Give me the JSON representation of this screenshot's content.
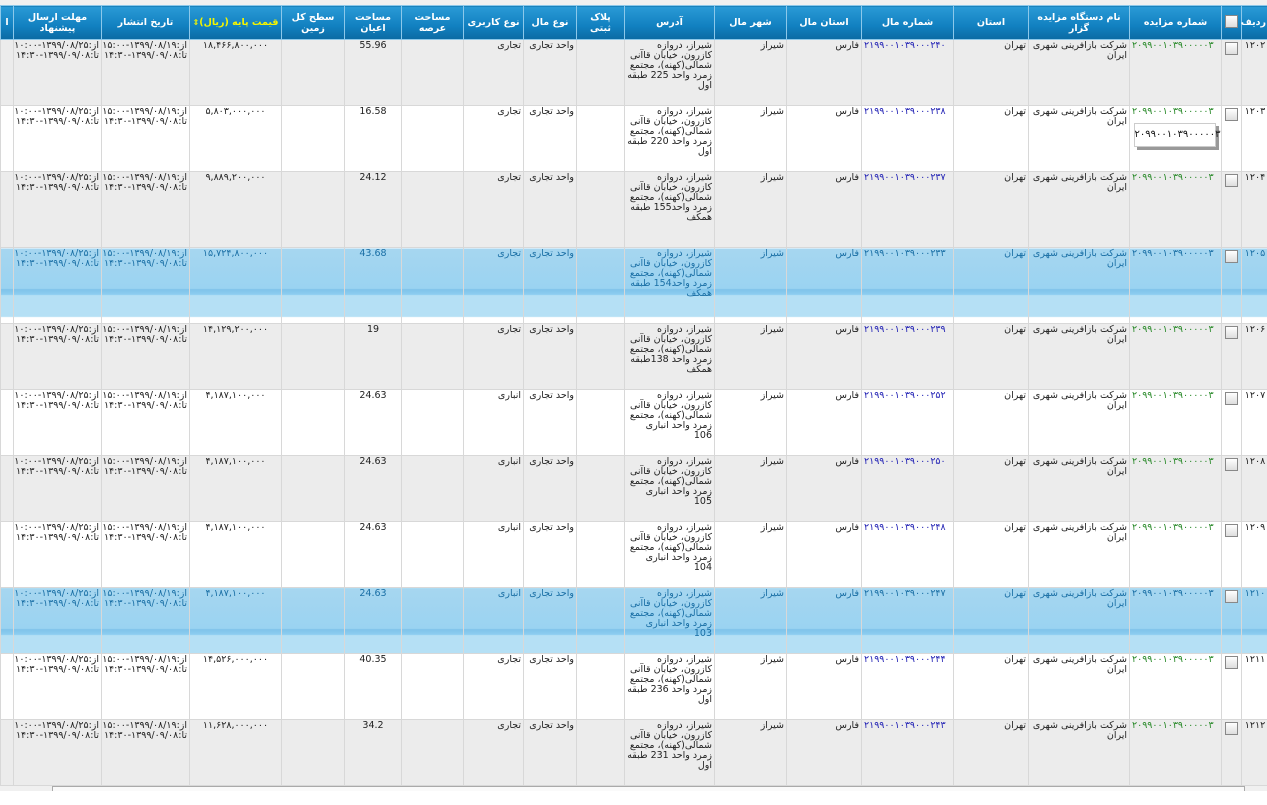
{
  "headers": {
    "row": "ردیف",
    "auction_number": "شماره مزایده",
    "organizer": "نام دستگاه مزایده گزار",
    "province": "استان",
    "property_number": "شماره مال",
    "property_province": "استان مال",
    "property_city": "شهر مال",
    "address": "آدرس",
    "registry_plate": "پلاک ثبتی",
    "property_type": "نوع مال",
    "usage_type": "نوع کاربری",
    "plot_area": "مساحت عرصه",
    "building_area": "مساحت اعیان",
    "total_land_area": "سطح کل زمین",
    "base_price": "قیمت پایه (ریال)",
    "publish_date": "تاریخ انتشار",
    "deadline": "مهلت ارسال پیشنهاد",
    "extra": "ا"
  },
  "tooltip": "۲۰۹۹۰۰۱۰۳۹۰۰۰۰۰۳",
  "colors": {
    "header": "#1180c0",
    "selected_row": "#9ad3f1",
    "auction_number": "#2a8a2a",
    "property_number": "#2323b5",
    "price_header": "#f4f400"
  },
  "rows": [
    {
      "row": "۱۲۰۲",
      "auction": "۲۰۹۹۰۰۱۰۳۹۰۰۰۰۰۳",
      "organizer": "شرکت بازآفرینی شهری ایران",
      "province": "تهران",
      "pnum": "۲۱۹۹۰۰۱۰۳۹۰۰۰۲۴۰",
      "pprov": "فارس",
      "city": "شیراز",
      "address": "شیراز، دروازه کازرون، خیابان قاآنی شمالی(کهنه)، مجتمع زمرد واحد 225 طبقه اول",
      "plate": "",
      "ptype": "واحد تجاری",
      "usage": "تجاری",
      "plot": "",
      "building": "55.96",
      "land": "",
      "price": "۱۸,۴۶۶,۸۰۰,۰۰۰",
      "pub_from": "از:۱۳۹۹/۰۸/۱۹-۱۵:۰۰",
      "pub_to": "تا:۱۳۹۹/۰۹/۰۸-۱۴:۳۰",
      "dl_from": "از:۱۳۹۹/۰۸/۲۵-۱۰:۰۰",
      "dl_to": "تا:۱۳۹۹/۰۹/۰۸-۱۴:۳۰",
      "selected": false
    },
    {
      "row": "۱۲۰۳",
      "auction": "۲۰۹۹۰۰۱۰۳۹۰۰۰۰۰۳",
      "organizer": "شرکت بازآفرینی شهری ایران",
      "province": "تهران",
      "pnum": "۲۱۹۹۰۰۱۰۳۹۰۰۰۲۳۸",
      "pprov": "فارس",
      "city": "شیراز",
      "address": "شیراز، دروازه کازرون، خیابان قاآنی شمالی(کهنه)، مجتمع زمرد واحد 220 طبقه اول",
      "plate": "",
      "ptype": "واحد تجاری",
      "usage": "تجاری",
      "plot": "",
      "building": "16.58",
      "land": "",
      "price": "۵,۸۰۳,۰۰۰,۰۰۰",
      "pub_from": "از:۱۳۹۹/۰۸/۱۹-۱۵:۰۰",
      "pub_to": "تا:۱۳۹۹/۰۹/۰۸-۱۴:۳۰",
      "dl_from": "از:۱۳۹۹/۰۸/۲۵-۱۰:۰۰",
      "dl_to": "تا:۱۳۹۹/۰۹/۰۸-۱۴:۳۰",
      "selected": false
    },
    {
      "row": "۱۲۰۴",
      "auction": "۲۰۹۹۰۰۱۰۳۹۰۰۰۰۰۳",
      "organizer": "شرکت بازآفرینی شهری ایران",
      "province": "تهران",
      "pnum": "۲۱۹۹۰۰۱۰۳۹۰۰۰۲۳۷",
      "pprov": "فارس",
      "city": "شیراز",
      "address": "شیراز، دروازه کازرون، خیابان قاآنی شمالی(کهنه)، مجتمع زمرد واحد155 طبقه همکف",
      "plate": "",
      "ptype": "واحد تجاری",
      "usage": "تجاری",
      "plot": "",
      "building": "24.12",
      "land": "",
      "price": "۹,۸۸۹,۲۰۰,۰۰۰",
      "pub_from": "از:۱۳۹۹/۰۸/۱۹-۱۵:۰۰",
      "pub_to": "تا:۱۳۹۹/۰۹/۰۸-۱۴:۳۰",
      "dl_from": "از:۱۳۹۹/۰۸/۲۵-۱۰:۰۰",
      "dl_to": "تا:۱۳۹۹/۰۹/۰۸-۱۴:۳۰",
      "selected": false
    },
    {
      "row": "۱۲۰۵",
      "auction": "۲۰۹۹۰۰۱۰۳۹۰۰۰۰۰۳",
      "organizer": "شرکت بازآفرینی شهری ایران",
      "province": "تهران",
      "pnum": "۲۱۹۹۰۰۱۰۳۹۰۰۰۲۳۳",
      "pprov": "فارس",
      "city": "شیراز",
      "address": "شیراز، دروازه کازرون، خیابان قاآنی شمالی(کهنه)، مجتمع زمرد واحد154 طبقه همکف",
      "plate": "",
      "ptype": "واحد تجاری",
      "usage": "تجاری",
      "plot": "",
      "building": "43.68",
      "land": "",
      "price": "۱۵,۷۲۴,۸۰۰,۰۰۰",
      "pub_from": "از:۱۳۹۹/۰۸/۱۹-۱۵:۰۰",
      "pub_to": "تا:۱۳۹۹/۰۹/۰۸-۱۴:۳۰",
      "dl_from": "از:۱۳۹۹/۰۸/۲۵-۱۰:۰۰",
      "dl_to": "تا:۱۳۹۹/۰۹/۰۸-۱۴:۳۰",
      "selected": true
    },
    {
      "row": "۱۲۰۶",
      "auction": "۲۰۹۹۰۰۱۰۳۹۰۰۰۰۰۳",
      "organizer": "شرکت بازآفرینی شهری ایران",
      "province": "تهران",
      "pnum": "۲۱۹۹۰۰۱۰۳۹۰۰۰۲۳۹",
      "pprov": "فارس",
      "city": "شیراز",
      "address": "شیراز، دروازه کازرون، خیابان قاآنی شمالی(کهنه)، مجتمع زمرد واحد 138طبقه همکف",
      "plate": "",
      "ptype": "واحد تجاری",
      "usage": "تجاری",
      "plot": "",
      "building": "19",
      "land": "",
      "price": "۱۴,۱۲۹,۲۰۰,۰۰۰",
      "pub_from": "از:۱۳۹۹/۰۸/۱۹-۱۵:۰۰",
      "pub_to": "تا:۱۳۹۹/۰۹/۰۸-۱۴:۳۰",
      "dl_from": "از:۱۳۹۹/۰۸/۲۵-۱۰:۰۰",
      "dl_to": "تا:۱۳۹۹/۰۹/۰۸-۱۴:۳۰",
      "selected": false
    },
    {
      "row": "۱۲۰۷",
      "auction": "۲۰۹۹۰۰۱۰۳۹۰۰۰۰۰۳",
      "organizer": "شرکت بازآفرینی شهری ایران",
      "province": "تهران",
      "pnum": "۲۱۹۹۰۰۱۰۳۹۰۰۰۲۵۲",
      "pprov": "فارس",
      "city": "شیراز",
      "address": "شیراز، دروازه کازرون، خیابان قاآنی شمالی(کهنه)، مجتمع زمرد واحد انباری 106",
      "plate": "",
      "ptype": "واحد تجاری",
      "usage": "انباری",
      "plot": "",
      "building": "24.63",
      "land": "",
      "price": "۴,۱۸۷,۱۰۰,۰۰۰",
      "pub_from": "از:۱۳۹۹/۰۸/۱۹-۱۵:۰۰",
      "pub_to": "تا:۱۳۹۹/۰۹/۰۸-۱۴:۳۰",
      "dl_from": "از:۱۳۹۹/۰۸/۲۵-۱۰:۰۰",
      "dl_to": "تا:۱۳۹۹/۰۹/۰۸-۱۴:۳۰",
      "selected": false
    },
    {
      "row": "۱۲۰۸",
      "auction": "۲۰۹۹۰۰۱۰۳۹۰۰۰۰۰۳",
      "organizer": "شرکت بازآفرینی شهری ایران",
      "province": "تهران",
      "pnum": "۲۱۹۹۰۰۱۰۳۹۰۰۰۲۵۰",
      "pprov": "فارس",
      "city": "شیراز",
      "address": "شیراز، دروازه کازرون، خیابان قاآنی شمالی(کهنه)، مجتمع زمرد واحد انباری 105",
      "plate": "",
      "ptype": "واحد تجاری",
      "usage": "انباری",
      "plot": "",
      "building": "24.63",
      "land": "",
      "price": "۴,۱۸۷,۱۰۰,۰۰۰",
      "pub_from": "از:۱۳۹۹/۰۸/۱۹-۱۵:۰۰",
      "pub_to": "تا:۱۳۹۹/۰۹/۰۸-۱۴:۳۰",
      "dl_from": "از:۱۳۹۹/۰۸/۲۵-۱۰:۰۰",
      "dl_to": "تا:۱۳۹۹/۰۹/۰۸-۱۴:۳۰",
      "selected": false
    },
    {
      "row": "۱۲۰۹",
      "auction": "۲۰۹۹۰۰۱۰۳۹۰۰۰۰۰۳",
      "organizer": "شرکت بازآفرینی شهری ایران",
      "province": "تهران",
      "pnum": "۲۱۹۹۰۰۱۰۳۹۰۰۰۲۴۸",
      "pprov": "فارس",
      "city": "شیراز",
      "address": "شیراز، دروازه کازرون، خیابان قاآنی شمالی(کهنه)، مجتمع زمرد واحد انباری 104",
      "plate": "",
      "ptype": "واحد تجاری",
      "usage": "انباری",
      "plot": "",
      "building": "24.63",
      "land": "",
      "price": "۴,۱۸۷,۱۰۰,۰۰۰",
      "pub_from": "از:۱۳۹۹/۰۸/۱۹-۱۵:۰۰",
      "pub_to": "تا:۱۳۹۹/۰۹/۰۸-۱۴:۳۰",
      "dl_from": "از:۱۳۹۹/۰۸/۲۵-۱۰:۰۰",
      "dl_to": "تا:۱۳۹۹/۰۹/۰۸-۱۴:۳۰",
      "selected": false
    },
    {
      "row": "۱۲۱۰",
      "auction": "۲۰۹۹۰۰۱۰۳۹۰۰۰۰۰۳",
      "organizer": "شرکت بازآفرینی شهری ایران",
      "province": "تهران",
      "pnum": "۲۱۹۹۰۰۱۰۳۹۰۰۰۲۴۷",
      "pprov": "فارس",
      "city": "شیراز",
      "address": "شیراز، دروازه کازرون، خیابان قاآنی شمالی(کهنه)، مجتمع زمرد واحد انباری 103",
      "plate": "",
      "ptype": "واحد تجاری",
      "usage": "انباری",
      "plot": "",
      "building": "24.63",
      "land": "",
      "price": "۴,۱۸۷,۱۰۰,۰۰۰",
      "pub_from": "از:۱۳۹۹/۰۸/۱۹-۱۵:۰۰",
      "pub_to": "تا:۱۳۹۹/۰۹/۰۸-۱۴:۳۰",
      "dl_from": "از:۱۳۹۹/۰۸/۲۵-۱۰:۰۰",
      "dl_to": "تا:۱۳۹۹/۰۹/۰۸-۱۴:۳۰",
      "selected": true
    },
    {
      "row": "۱۲۱۱",
      "auction": "۲۰۹۹۰۰۱۰۳۹۰۰۰۰۰۳",
      "organizer": "شرکت بازآفرینی شهری ایران",
      "province": "تهران",
      "pnum": "۲۱۹۹۰۰۱۰۳۹۰۰۰۲۴۴",
      "pprov": "فارس",
      "city": "شیراز",
      "address": "شیراز، دروازه کازرون، خیابان قاآنی شمالی(کهنه)، مجتمع زمرد واحد 236 طبقه اول",
      "plate": "",
      "ptype": "واحد تجاری",
      "usage": "تجاری",
      "plot": "",
      "building": "40.35",
      "land": "",
      "price": "۱۴,۵۲۶,۰۰۰,۰۰۰",
      "pub_from": "از:۱۳۹۹/۰۸/۱۹-۱۵:۰۰",
      "pub_to": "تا:۱۳۹۹/۰۹/۰۸-۱۴:۳۰",
      "dl_from": "از:۱۳۹۹/۰۸/۲۵-۱۰:۰۰",
      "dl_to": "تا:۱۳۹۹/۰۹/۰۸-۱۴:۳۰",
      "selected": false
    },
    {
      "row": "۱۲۱۲",
      "auction": "۲۰۹۹۰۰۱۰۳۹۰۰۰۰۰۳",
      "organizer": "شرکت بازآفرینی شهری ایران",
      "province": "تهران",
      "pnum": "۲۱۹۹۰۰۱۰۳۹۰۰۰۲۴۳",
      "pprov": "فارس",
      "city": "شیراز",
      "address": "شیراز، دروازه کازرون، خیابان قاآنی شمالی(کهنه)، مجتمع زمرد واحد 231 طبقه اول",
      "plate": "",
      "ptype": "واحد تجاری",
      "usage": "تجاری",
      "plot": "",
      "building": "34.2",
      "land": "",
      "price": "۱۱,۶۲۸,۰۰۰,۰۰۰",
      "pub_from": "از:۱۳۹۹/۰۸/۱۹-۱۵:۰۰",
      "pub_to": "تا:۱۳۹۹/۰۹/۰۸-۱۴:۳۰",
      "dl_from": "از:۱۳۹۹/۰۸/۲۵-۱۰:۰۰",
      "dl_to": "تا:۱۳۹۹/۰۹/۰۸-۱۴:۳۰",
      "selected": false
    }
  ]
}
